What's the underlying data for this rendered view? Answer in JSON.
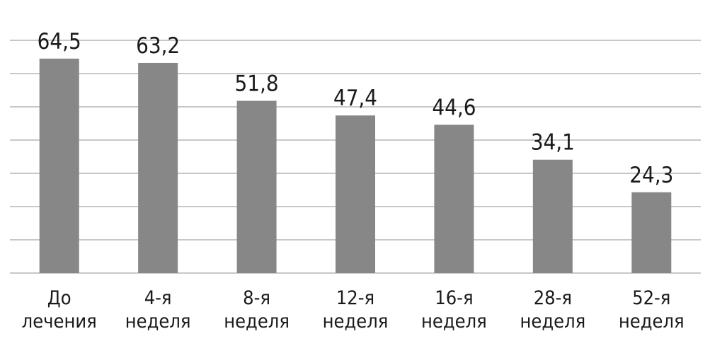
{
  "chart_data": {
    "type": "bar",
    "categories": [
      [
        "До",
        "лечения"
      ],
      [
        "4-я",
        "неделя"
      ],
      [
        "8-я",
        "неделя"
      ],
      [
        "12-я",
        "неделя"
      ],
      [
        "16-я",
        "неделя"
      ],
      [
        "28-я",
        "неделя"
      ],
      [
        "52-я",
        "неделя"
      ]
    ],
    "values": [
      64.5,
      63.2,
      51.8,
      47.4,
      44.6,
      34.1,
      24.3
    ],
    "value_labels": [
      "64,5",
      "63,2",
      "51,8",
      "47,4",
      "44,6",
      "34,1",
      "24,3"
    ],
    "ylim": [
      0,
      70
    ],
    "gridlines": [
      0,
      10,
      20,
      30,
      40,
      50,
      60,
      70
    ],
    "grid": true,
    "legend": false,
    "colors": {
      "bar": "#878787",
      "grid": "#c8c8c8",
      "text": "#1a1a1a"
    }
  }
}
